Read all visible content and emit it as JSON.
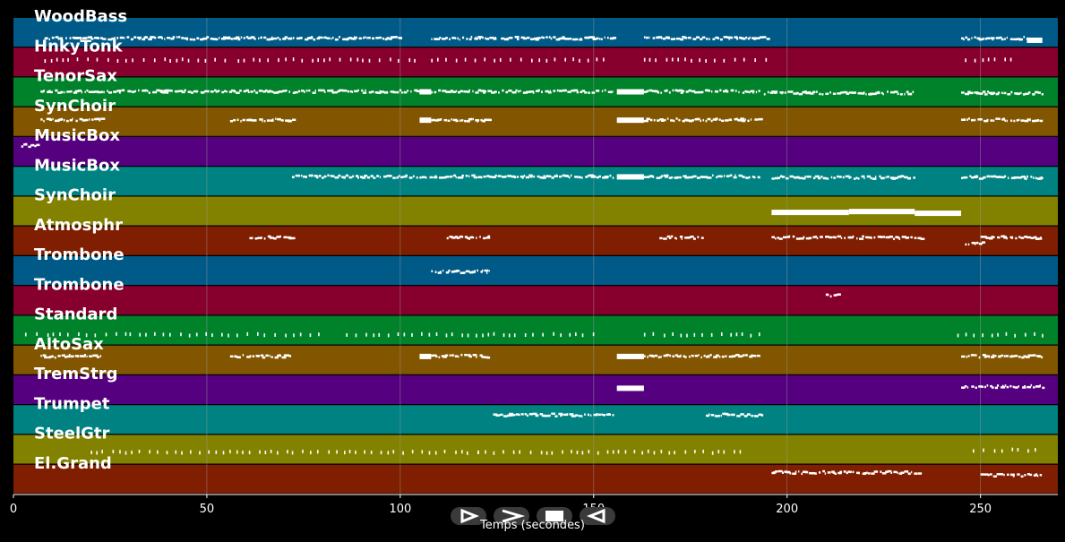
{
  "colors": {
    "background": "#000000",
    "palette": [
      "#005a87",
      "#87002d",
      "#00822a",
      "#825500",
      "#55007f",
      "#008282",
      "#828200",
      "#7f1e00"
    ],
    "note": "#ffffff",
    "gridline": "#9a9a9a"
  },
  "axis": {
    "x_min": 0,
    "x_max": 270,
    "ticks": [
      0,
      50,
      100,
      150,
      200,
      250
    ],
    "tick_labels": [
      "0",
      "50",
      "100",
      "150",
      "200",
      "250"
    ],
    "label": "Temps (secondes)"
  },
  "tracks": [
    {
      "name": "WoodBass",
      "segments": [
        [
          8,
          100,
          "dots",
          0.72
        ],
        [
          108,
          125,
          "dots",
          0.72
        ],
        [
          126,
          155,
          "dots",
          0.72
        ],
        [
          163,
          195,
          "dots",
          0.72
        ],
        [
          245,
          262,
          "dots",
          0.72
        ],
        [
          262,
          266,
          "block",
          0.78
        ]
      ]
    },
    {
      "name": "HnkyTonk",
      "segments": [
        [
          8,
          55,
          "ticks",
          0.45
        ],
        [
          58,
          105,
          "ticks",
          0.45
        ],
        [
          108,
          155,
          "ticks",
          0.45
        ],
        [
          163,
          195,
          "ticks",
          0.45
        ],
        [
          246,
          258,
          "ticks",
          0.45
        ]
      ]
    },
    {
      "name": "TenorSax",
      "segments": [
        [
          7,
          105,
          "dots",
          0.5
        ],
        [
          105,
          108,
          "block",
          0.5
        ],
        [
          108,
          155,
          "dots",
          0.5
        ],
        [
          156,
          163,
          "block",
          0.5
        ],
        [
          163,
          193,
          "dots",
          0.5
        ],
        [
          194,
          233,
          "dots",
          0.55
        ],
        [
          245,
          266,
          "dots",
          0.55
        ]
      ]
    },
    {
      "name": "SynChoir",
      "segments": [
        [
          7,
          23,
          "dots",
          0.45
        ],
        [
          56,
          72,
          "dots",
          0.45
        ],
        [
          105,
          108,
          "block",
          0.45
        ],
        [
          108,
          123,
          "dots",
          0.45
        ],
        [
          156,
          163,
          "block",
          0.45
        ],
        [
          163,
          193,
          "dots",
          0.45
        ],
        [
          245,
          266,
          "dots",
          0.45
        ]
      ]
    },
    {
      "name": "MusicBox",
      "segments": [
        [
          2,
          6,
          "dots",
          0.3
        ]
      ]
    },
    {
      "name": "MusicBox",
      "segments": [
        [
          72,
          155,
          "dots",
          0.35
        ],
        [
          156,
          163,
          "block",
          0.35
        ],
        [
          163,
          193,
          "dots",
          0.35
        ],
        [
          196,
          233,
          "dots",
          0.38
        ],
        [
          245,
          266,
          "dots",
          0.38
        ]
      ]
    },
    {
      "name": "SynChoir",
      "segments": [
        [
          196,
          216,
          "block",
          0.55
        ],
        [
          216,
          233,
          "block",
          0.52
        ],
        [
          233,
          245,
          "block",
          0.58
        ]
      ]
    },
    {
      "name": "Atmosphr",
      "segments": [
        [
          61,
          72,
          "dots",
          0.4
        ],
        [
          112,
          123,
          "dots",
          0.4
        ],
        [
          167,
          178,
          "dots",
          0.4
        ],
        [
          196,
          235,
          "dots",
          0.4
        ],
        [
          246,
          251,
          "dots",
          0.6
        ],
        [
          250,
          266,
          "dots",
          0.4
        ]
      ]
    },
    {
      "name": "Trombone",
      "segments": [
        [
          108,
          123,
          "dots",
          0.55
        ]
      ]
    },
    {
      "name": "Trombone",
      "segments": [
        [
          210,
          213,
          "dots",
          0.35
        ]
      ]
    },
    {
      "name": "Standard",
      "segments": [
        [
          3,
          30,
          "ticks",
          0.68
        ],
        [
          30,
          80,
          "ticks",
          0.68
        ],
        [
          86,
          150,
          "ticks",
          0.68
        ],
        [
          163,
          193,
          "ticks",
          0.68
        ],
        [
          244,
          266,
          "ticks",
          0.68
        ]
      ]
    },
    {
      "name": "AltoSax",
      "segments": [
        [
          7,
          23,
          "dots",
          0.38
        ],
        [
          56,
          72,
          "dots",
          0.38
        ],
        [
          105,
          108,
          "block",
          0.38
        ],
        [
          108,
          123,
          "dots",
          0.38
        ],
        [
          156,
          163,
          "block",
          0.38
        ],
        [
          163,
          193,
          "dots",
          0.38
        ],
        [
          245,
          266,
          "dots",
          0.38
        ]
      ]
    },
    {
      "name": "TremStrg",
      "segments": [
        [
          156,
          163,
          "block",
          0.45
        ],
        [
          245,
          266,
          "dots",
          0.4
        ]
      ]
    },
    {
      "name": "Trumpet",
      "segments": [
        [
          124,
          155,
          "dots",
          0.35
        ],
        [
          179,
          194,
          "dots",
          0.35
        ]
      ]
    },
    {
      "name": "SteelGtr",
      "segments": [
        [
          20,
          120,
          "ticks",
          0.62
        ],
        [
          120,
          190,
          "ticks",
          0.62
        ],
        [
          248,
          266,
          "ticks",
          0.55
        ]
      ]
    },
    {
      "name": "El.Grand",
      "segments": [
        [
          196,
          234,
          "dots",
          0.28
        ],
        [
          250,
          266,
          "dots",
          0.38
        ]
      ]
    }
  ],
  "controls": [
    {
      "name": "play-button",
      "icon": "play-icon"
    },
    {
      "name": "forward-button",
      "icon": "chevron-right-icon"
    },
    {
      "name": "stop-button",
      "icon": "stop-icon"
    },
    {
      "name": "back-button",
      "icon": "chevron-left-icon"
    }
  ]
}
